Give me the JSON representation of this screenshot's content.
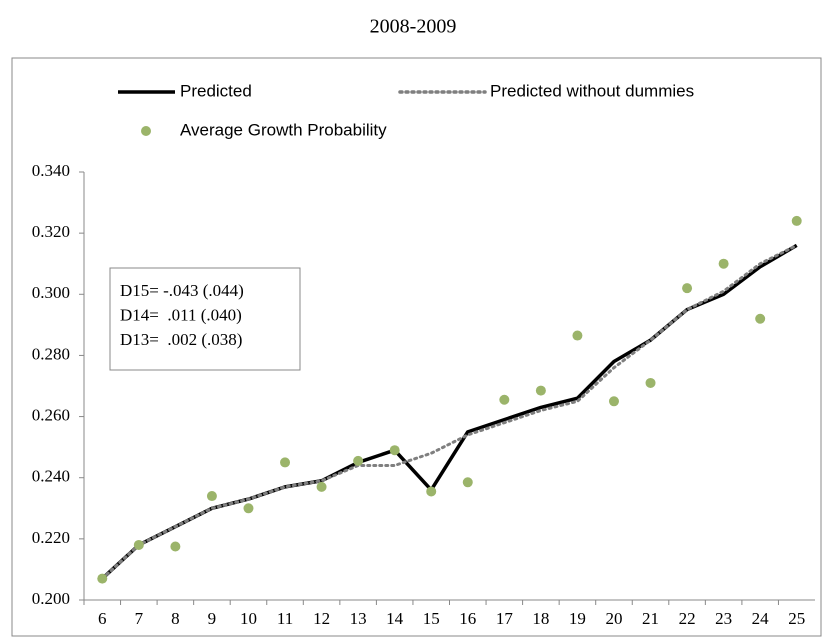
{
  "chart_data": {
    "type": "line",
    "title": "2008-2009",
    "categories": [
      "6",
      "7",
      "8",
      "9",
      "10",
      "11",
      "12",
      "13",
      "14",
      "15",
      "16",
      "17",
      "18",
      "19",
      "20",
      "21",
      "22",
      "23",
      "24",
      "25"
    ],
    "series": [
      {
        "name": "Predicted",
        "color": "#000000",
        "style": "solid",
        "values": [
          0.207,
          0.218,
          0.224,
          0.23,
          0.233,
          0.237,
          0.239,
          0.245,
          0.249,
          0.236,
          0.255,
          0.259,
          0.263,
          0.266,
          0.278,
          0.285,
          0.295,
          0.3,
          0.309,
          0.316
        ]
      },
      {
        "name": "Predicted without dummies",
        "color": "#7f7f7f",
        "style": "dotted",
        "values": [
          0.207,
          0.218,
          0.224,
          0.23,
          0.233,
          0.237,
          0.239,
          0.244,
          0.244,
          0.248,
          0.254,
          0.258,
          0.262,
          0.265,
          0.276,
          0.285,
          0.295,
          0.301,
          0.31,
          0.316
        ]
      },
      {
        "name": "Average Growth Probability",
        "color": "#9bb46a",
        "style": "markers",
        "values": [
          0.207,
          0.218,
          0.2175,
          0.234,
          0.23,
          0.245,
          0.237,
          0.2455,
          0.249,
          0.2355,
          0.2385,
          0.2655,
          0.2685,
          0.2865,
          0.265,
          0.271,
          0.302,
          0.31,
          0.292,
          0.324
        ]
      }
    ],
    "ylim": [
      0.2,
      0.34
    ],
    "yticks": [
      {
        "value": 0.2,
        "label": "0.200"
      },
      {
        "value": 0.22,
        "label": "0.220"
      },
      {
        "value": 0.24,
        "label": "0.240"
      },
      {
        "value": 0.26,
        "label": "0.260"
      },
      {
        "value": 0.28,
        "label": "0.280"
      },
      {
        "value": 0.3,
        "label": "0.300"
      },
      {
        "value": 0.32,
        "label": "0.320"
      },
      {
        "value": 0.34,
        "label": "0.340"
      }
    ],
    "annotations": [
      "D15= -.043 (.044)",
      "D14=  .011 (.040)",
      "D13=  .002 (.038)"
    ],
    "grid": false
  }
}
